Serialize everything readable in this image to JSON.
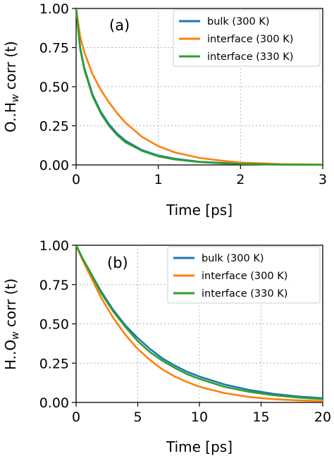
{
  "chart_data": [
    {
      "type": "line",
      "panel_label": "(a)",
      "xlabel": "Time [ps]",
      "ylabel_main": "O..H",
      "ylabel_sub": "w",
      "ylabel_tail": " corr (t)",
      "xlim": [
        0,
        3
      ],
      "ylim": [
        0,
        1
      ],
      "x_ticks": [
        "0",
        "1",
        "2",
        "3"
      ],
      "y_ticks": [
        "0.00",
        "0.25",
        "0.50",
        "0.75",
        "1.00"
      ],
      "grid": true,
      "legend_position": "top-right",
      "x": [
        0,
        0.05,
        0.1,
        0.2,
        0.3,
        0.4,
        0.5,
        0.6,
        0.8,
        1.0,
        1.2,
        1.5,
        1.8,
        2.0,
        2.5,
        3.0
      ],
      "series": [
        {
          "name": "bulk (300 K)",
          "color": "#1f77b4",
          "values": [
            1.0,
            0.75,
            0.62,
            0.45,
            0.34,
            0.26,
            0.2,
            0.155,
            0.095,
            0.06,
            0.04,
            0.02,
            0.012,
            0.008,
            0.003,
            0.001
          ]
        },
        {
          "name": "interface (300 K)",
          "color": "#ff7f0e",
          "values": [
            1.0,
            0.82,
            0.72,
            0.58,
            0.48,
            0.4,
            0.33,
            0.27,
            0.18,
            0.12,
            0.08,
            0.045,
            0.025,
            0.015,
            0.005,
            0.002
          ]
        },
        {
          "name": "interface (330 K)",
          "color": "#2ca02c",
          "values": [
            1.0,
            0.74,
            0.61,
            0.44,
            0.33,
            0.25,
            0.19,
            0.145,
            0.09,
            0.055,
            0.035,
            0.018,
            0.01,
            0.007,
            0.002,
            0.001
          ]
        }
      ]
    },
    {
      "type": "line",
      "panel_label": "(b)",
      "xlabel": "Time [ps]",
      "ylabel_main": "H..O",
      "ylabel_sub": "w",
      "ylabel_tail": " corr (t)",
      "xlim": [
        0,
        20
      ],
      "ylim": [
        0,
        1
      ],
      "x_ticks": [
        "0",
        "5",
        "10",
        "15",
        "20"
      ],
      "y_ticks": [
        "0.00",
        "0.25",
        "0.50",
        "0.75",
        "1.00"
      ],
      "grid": true,
      "legend_position": "top-right",
      "x": [
        0,
        0.5,
        1,
        2,
        3,
        4,
        5,
        6,
        7,
        8,
        9,
        10,
        12,
        14,
        16,
        18,
        20
      ],
      "series": [
        {
          "name": "bulk (300 K)",
          "color": "#1f77b4",
          "values": [
            1.0,
            0.92,
            0.85,
            0.71,
            0.59,
            0.49,
            0.41,
            0.34,
            0.28,
            0.235,
            0.195,
            0.165,
            0.115,
            0.08,
            0.055,
            0.038,
            0.027
          ]
        },
        {
          "name": "interface (300 K)",
          "color": "#ff7f0e",
          "values": [
            1.0,
            0.91,
            0.83,
            0.67,
            0.54,
            0.43,
            0.34,
            0.27,
            0.21,
            0.165,
            0.13,
            0.1,
            0.06,
            0.035,
            0.021,
            0.013,
            0.008
          ]
        },
        {
          "name": "interface (330 K)",
          "color": "#2ca02c",
          "values": [
            1.0,
            0.92,
            0.85,
            0.7,
            0.58,
            0.48,
            0.39,
            0.32,
            0.265,
            0.22,
            0.18,
            0.15,
            0.1,
            0.068,
            0.046,
            0.031,
            0.021
          ]
        }
      ]
    }
  ]
}
